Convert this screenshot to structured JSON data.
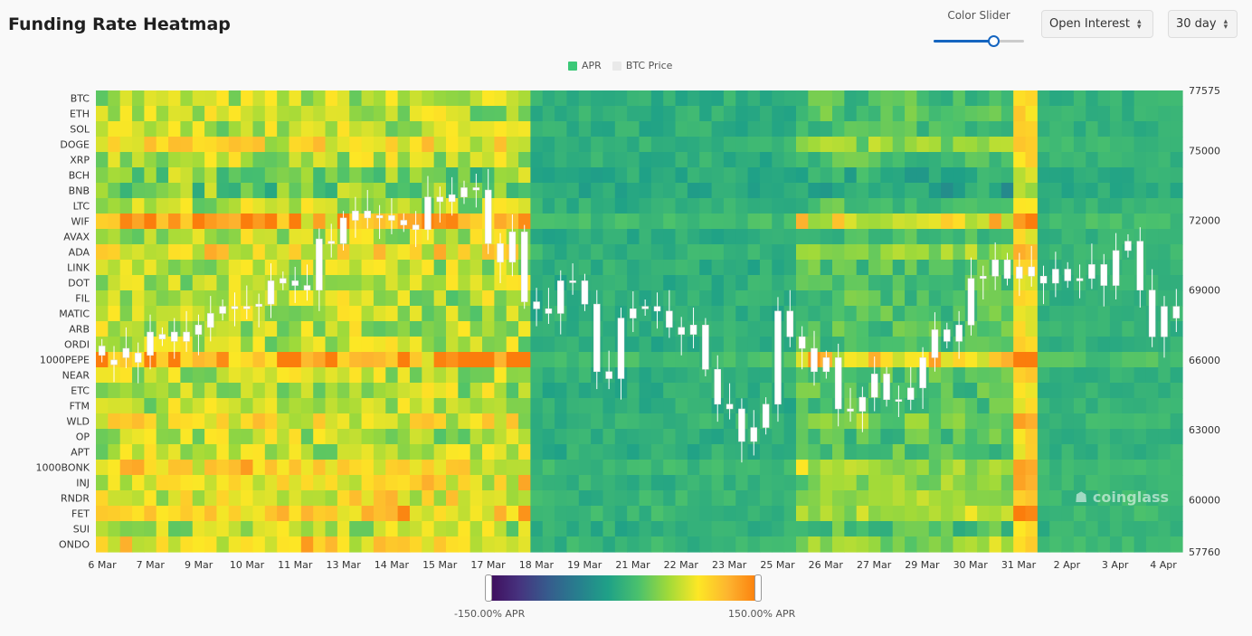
{
  "header": {
    "title": "Funding Rate Heatmap",
    "slider_label": "Color Slider",
    "metric_select": "Open Interest",
    "period_select": "30 day"
  },
  "slider": {
    "value": 0.66
  },
  "legend": {
    "apr": "APR",
    "btc_price": "BTC Price",
    "apr_color": "#3cc878",
    "btc_color": "#e9e9e9"
  },
  "colorbar": {
    "min_label": "-150.00% APR",
    "max_label": "150.00% APR"
  },
  "watermark": "coinglass",
  "chart_data": {
    "type": "heatmap",
    "title": "Funding Rate Heatmap",
    "rows": [
      "BTC",
      "ETH",
      "SOL",
      "DOGE",
      "XRP",
      "BCH",
      "BNB",
      "LTC",
      "WIF",
      "AVAX",
      "ADA",
      "LINK",
      "DOT",
      "FIL",
      "MATIC",
      "ARB",
      "ORDI",
      "1000PEPE",
      "NEAR",
      "ETC",
      "FTM",
      "WLD",
      "OP",
      "APT",
      "1000BONK",
      "INJ",
      "RNDR",
      "FET",
      "SUI",
      "ONDO"
    ],
    "x_ticks": [
      "6 Mar",
      "7 Mar",
      "9 Mar",
      "10 Mar",
      "11 Mar",
      "13 Mar",
      "14 Mar",
      "15 Mar",
      "17 Mar",
      "18 Mar",
      "19 Mar",
      "21 Mar",
      "22 Mar",
      "23 Mar",
      "25 Mar",
      "26 Mar",
      "27 Mar",
      "29 Mar",
      "30 Mar",
      "31 Mar",
      "2 Apr",
      "3 Apr",
      "4 Apr"
    ],
    "columns": 90,
    "color_range": [
      -150,
      150
    ],
    "color_unit": "% APR",
    "price_axis": {
      "ticks": [
        77575,
        75000,
        72000,
        69000,
        66000,
        63000,
        60000,
        57760
      ],
      "range": [
        57760,
        77575
      ]
    },
    "btc_candles_approx": [
      [
        66.2,
        66.6
      ],
      [
        66.0,
        65.8
      ],
      [
        66.5,
        66.1
      ],
      [
        65.9,
        66.3
      ],
      [
        66.2,
        67.2
      ],
      [
        67.1,
        66.9
      ],
      [
        66.8,
        67.2
      ],
      [
        67.2,
        66.8
      ],
      [
        67.1,
        67.5
      ],
      [
        67.4,
        68.0
      ],
      [
        68.0,
        68.3
      ],
      [
        68.3,
        68.2
      ],
      [
        68.2,
        68.3
      ],
      [
        68.3,
        68.4
      ],
      [
        68.4,
        69.4
      ],
      [
        69.3,
        69.5
      ],
      [
        69.4,
        69.2
      ],
      [
        69.2,
        69.0
      ],
      [
        69.0,
        71.2
      ],
      [
        71.1,
        71.0
      ],
      [
        71.0,
        72.1
      ],
      [
        72.0,
        72.4
      ],
      [
        72.4,
        72.1
      ],
      [
        72.1,
        72.2
      ],
      [
        72.2,
        72.0
      ],
      [
        72.0,
        71.8
      ],
      [
        71.8,
        71.6
      ],
      [
        71.6,
        73.0
      ],
      [
        73.0,
        72.8
      ],
      [
        72.8,
        73.1
      ],
      [
        73.0,
        73.4
      ],
      [
        73.4,
        73.3
      ],
      [
        73.3,
        71.0
      ],
      [
        71.0,
        70.2
      ],
      [
        70.2,
        71.5
      ],
      [
        71.5,
        68.5
      ],
      [
        68.5,
        68.2
      ],
      [
        68.2,
        68.0
      ],
      [
        68.0,
        69.4
      ],
      [
        69.4,
        69.4
      ],
      [
        69.4,
        68.4
      ],
      [
        68.4,
        65.5
      ],
      [
        65.5,
        65.2
      ],
      [
        65.2,
        67.8
      ],
      [
        67.8,
        68.2
      ],
      [
        68.2,
        68.3
      ],
      [
        68.3,
        68.1
      ],
      [
        68.1,
        67.4
      ],
      [
        67.4,
        67.1
      ],
      [
        67.1,
        67.5
      ],
      [
        67.5,
        65.6
      ],
      [
        65.6,
        64.1
      ],
      [
        64.1,
        63.9
      ],
      [
        63.9,
        62.5
      ],
      [
        62.5,
        63.1
      ],
      [
        63.1,
        64.1
      ],
      [
        64.1,
        68.1
      ],
      [
        68.1,
        67.0
      ],
      [
        67.0,
        66.5
      ],
      [
        66.5,
        65.5
      ],
      [
        65.5,
        66.1
      ],
      [
        66.1,
        63.9
      ],
      [
        63.9,
        63.8
      ],
      [
        63.8,
        64.4
      ],
      [
        64.4,
        65.4
      ],
      [
        65.4,
        64.3
      ],
      [
        64.3,
        64.3
      ],
      [
        64.3,
        64.8
      ],
      [
        64.8,
        66.1
      ],
      [
        66.1,
        67.3
      ],
      [
        67.3,
        66.8
      ],
      [
        66.8,
        67.5
      ],
      [
        67.5,
        69.5
      ],
      [
        69.5,
        69.6
      ],
      [
        69.6,
        70.3
      ],
      [
        70.3,
        69.5
      ],
      [
        69.5,
        70.0
      ],
      [
        70.0,
        69.6
      ],
      [
        69.6,
        69.3
      ],
      [
        69.3,
        69.9
      ],
      [
        69.9,
        69.4
      ],
      [
        69.4,
        69.5
      ],
      [
        69.5,
        70.1
      ],
      [
        70.1,
        69.2
      ],
      [
        69.2,
        70.7
      ],
      [
        70.7,
        71.1
      ],
      [
        71.1,
        69.0
      ],
      [
        69.0,
        67.0
      ],
      [
        67.0,
        68.3
      ],
      [
        68.3,
        67.8
      ]
    ]
  }
}
